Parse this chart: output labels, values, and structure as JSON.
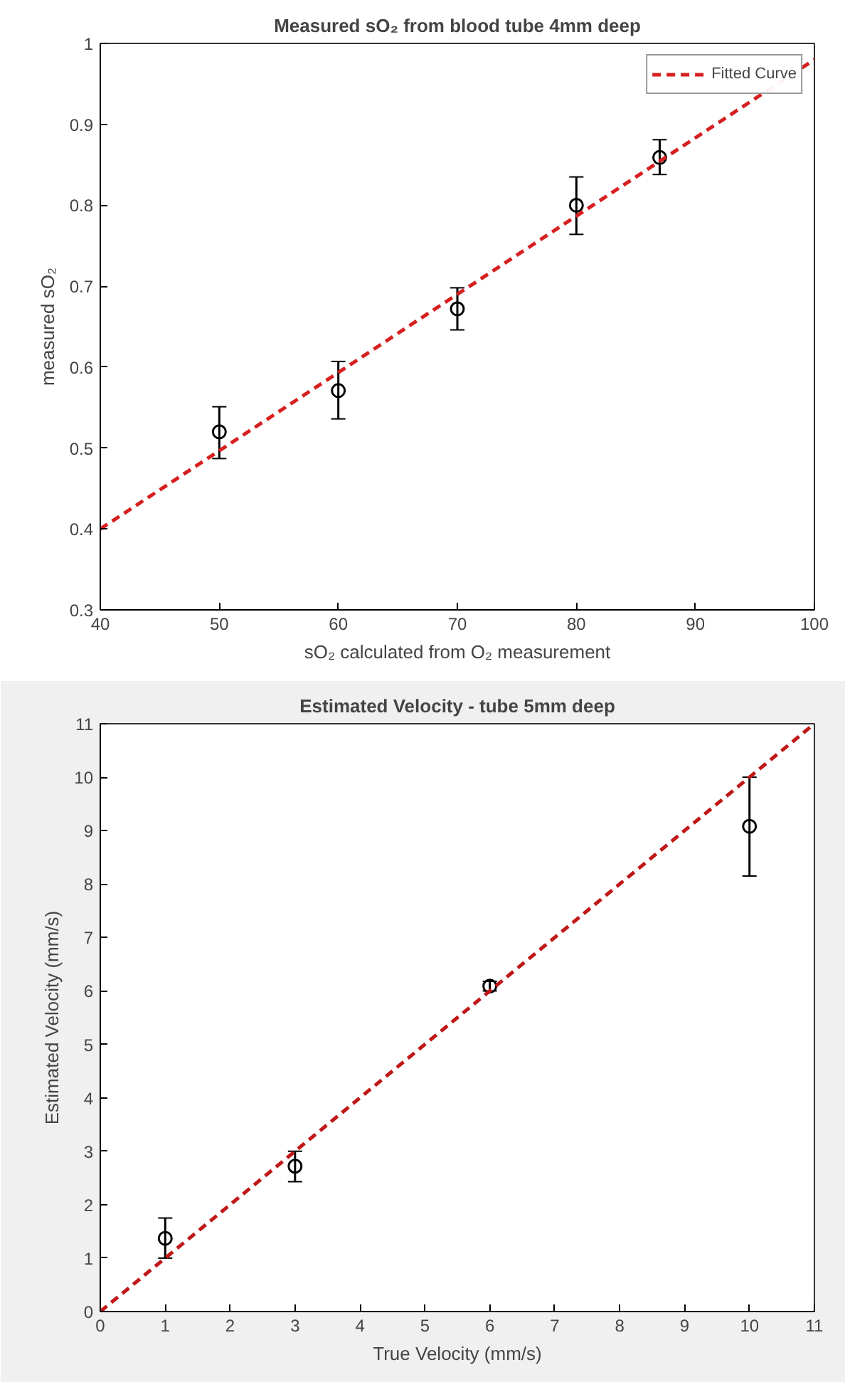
{
  "chart_data": [
    {
      "type": "scatter",
      "title": "Measured sO₂ from blood tube 4mm deep",
      "xlabel": "sO₂ calculated from O₂ measurement",
      "ylabel": "measured sO₂",
      "xlim": [
        40,
        100
      ],
      "xticks": [
        40,
        50,
        60,
        70,
        80,
        90,
        100
      ],
      "ylim": [
        0.3,
        1
      ],
      "yticks": [
        0.3,
        0.4,
        0.5,
        0.6,
        0.7,
        0.8,
        0.9,
        1
      ],
      "grid": false,
      "legend": "top right",
      "series": [
        {
          "marker": "circle",
          "color": "#000000",
          "x": [
            50,
            60,
            70,
            80,
            87
          ],
          "values": [
            0.52,
            0.571,
            0.672,
            0.8,
            0.859
          ],
          "errors": [
            [
              0.487,
              0.551
            ],
            [
              0.536,
              0.607
            ],
            [
              0.646,
              0.698
            ],
            [
              0.764,
              0.835
            ],
            [
              0.838,
              0.881
            ]
          ]
        },
        {
          "type": "line",
          "name": "Fitted Curve",
          "color": "#d62020",
          "line_style": "dashed",
          "x": [
            40,
            100
          ],
          "values": [
            0.4,
            0.98
          ]
        }
      ]
    },
    {
      "type": "scatter",
      "title": "Estimated Velocity - tube 5mm deep",
      "xlabel": "True Velocity (mm/s)",
      "ylabel": "Estimated Velocity (mm/s)",
      "xlim": [
        0,
        11
      ],
      "xticks": [
        0,
        1,
        2,
        3,
        4,
        5,
        6,
        7,
        8,
        9,
        10,
        11
      ],
      "ylim": [
        0,
        11
      ],
      "yticks": [
        0,
        1,
        2,
        3,
        4,
        5,
        6,
        7,
        8,
        9,
        10,
        11
      ],
      "grid": false,
      "legend": false,
      "series": [
        {
          "marker": "circle",
          "color": "#000000",
          "x": [
            1,
            3,
            6,
            10
          ],
          "values": [
            1.37,
            2.72,
            6.09,
            9.08
          ],
          "errors": [
            [
              1.0,
              1.75
            ],
            [
              2.43,
              3.0
            ],
            [
              6.0,
              6.18
            ],
            [
              8.15,
              10.0
            ]
          ]
        },
        {
          "type": "line",
          "color": "#c01818",
          "line_style": "dashed",
          "x": [
            0,
            11
          ],
          "values": [
            0,
            11
          ]
        }
      ]
    }
  ]
}
